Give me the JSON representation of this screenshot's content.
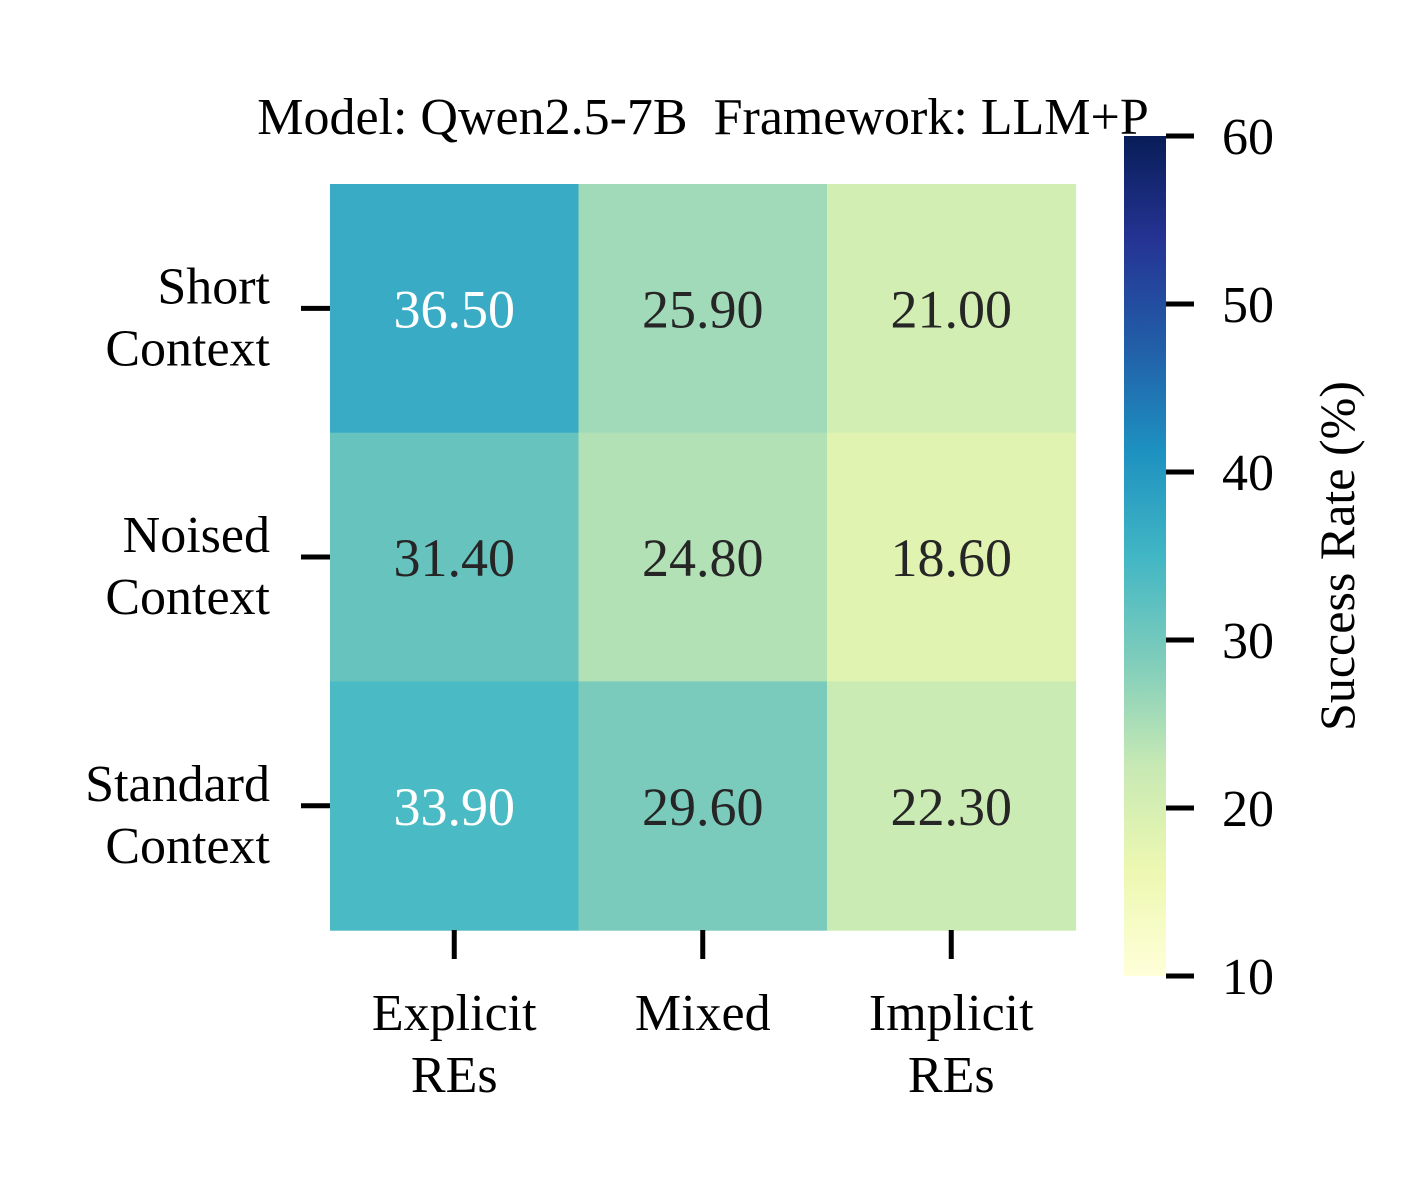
{
  "chart_data": {
    "type": "heatmap",
    "title": "Model: Qwen2.5-7B  Framework: LLM+P",
    "x_categories": [
      [
        "Explicit",
        "REs"
      ],
      [
        "Mixed"
      ],
      [
        "Implicit",
        "REs"
      ]
    ],
    "y_categories": [
      [
        "Short",
        "Context"
      ],
      [
        "Noised",
        "Context"
      ],
      [
        "Standard",
        "Context"
      ]
    ],
    "values": [
      [
        36.5,
        25.9,
        21.0
      ],
      [
        31.4,
        24.8,
        18.6
      ],
      [
        33.9,
        29.6,
        22.3
      ]
    ],
    "value_labels": [
      [
        "36.50",
        "25.90",
        "21.00"
      ],
      [
        "31.40",
        "24.80",
        "18.60"
      ],
      [
        "33.90",
        "29.60",
        "22.30"
      ]
    ],
    "colormap": "YlGnBu",
    "vmin": 10,
    "vmax": 60,
    "colorbar": {
      "label": "Success Rate (%)",
      "ticks": [
        "10",
        "20",
        "30",
        "40",
        "50",
        "60"
      ],
      "tick_values": [
        10,
        20,
        30,
        40,
        50,
        60
      ]
    },
    "colors": {
      "light_text": "#ffffff",
      "dark_text": "#262626",
      "cells": [
        [
          "#39abc5",
          "#a1dab9",
          "#d2eeb2"
        ],
        [
          "#66c3be",
          "#b2e1b6",
          "#e0f3b0"
        ],
        [
          "#4abac4",
          "#7bcbbd",
          "#cbebb4"
        ]
      ]
    }
  }
}
